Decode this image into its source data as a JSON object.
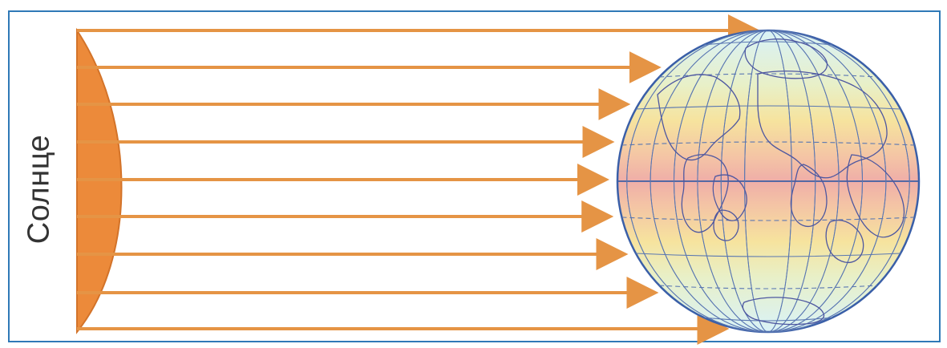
{
  "diagram": {
    "sun_label": "Солнце"
  },
  "colors": {
    "frame_border": "#2f79b7",
    "sun_fill": "#ec8a3a",
    "ray_color": "#e59445",
    "globe_outline": "#3a5fa8",
    "grid_lines": "#5a77b2",
    "continents": "#4e57a0",
    "equator_band": "#f0a0a0",
    "tropic_band": "#f7e59b",
    "pole_band": "#d7f2f7"
  },
  "icons": {
    "sun": "sun-segment-icon",
    "earth": "globe-icon",
    "rays": "arrow-icon"
  }
}
